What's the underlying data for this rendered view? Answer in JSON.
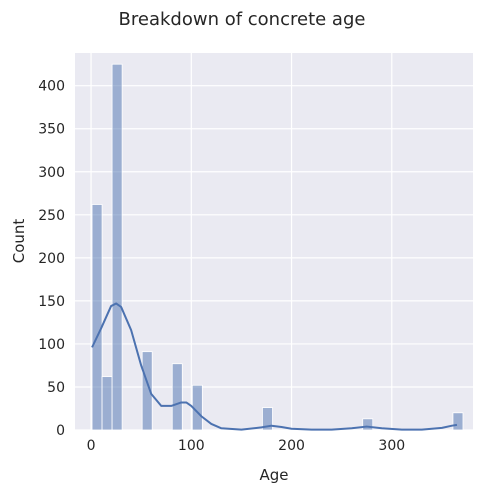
{
  "chart_data": {
    "type": "bar",
    "title": "Breakdown of concrete age",
    "xlabel": "Age",
    "ylabel": "Count",
    "xlim": [
      -16,
      381
    ],
    "ylim": [
      0,
      438
    ],
    "x_ticks": [
      0,
      100,
      200,
      300
    ],
    "y_ticks": [
      0,
      50,
      100,
      150,
      200,
      250,
      300,
      350,
      400
    ],
    "grid": true,
    "bin_width": 10,
    "bins": [
      {
        "start": 1,
        "end": 11,
        "count": 262
      },
      {
        "start": 11,
        "end": 21,
        "count": 62
      },
      {
        "start": 21,
        "end": 31,
        "count": 425
      },
      {
        "start": 31,
        "end": 41,
        "count": 0
      },
      {
        "start": 41,
        "end": 51,
        "count": 0
      },
      {
        "start": 51,
        "end": 61,
        "count": 91
      },
      {
        "start": 61,
        "end": 71,
        "count": 0
      },
      {
        "start": 71,
        "end": 81,
        "count": 0
      },
      {
        "start": 81,
        "end": 91,
        "count": 77
      },
      {
        "start": 91,
        "end": 101,
        "count": 0
      },
      {
        "start": 101,
        "end": 111,
        "count": 52
      },
      {
        "start": 171,
        "end": 181,
        "count": 26
      },
      {
        "start": 261,
        "end": 271,
        "count": 0
      },
      {
        "start": 271,
        "end": 281,
        "count": 13
      },
      {
        "start": 361,
        "end": 371,
        "count": 20
      }
    ],
    "kde": {
      "x": [
        1,
        10,
        20,
        25,
        30,
        40,
        50,
        60,
        70,
        80,
        90,
        95,
        100,
        110,
        120,
        130,
        150,
        170,
        180,
        190,
        200,
        220,
        240,
        260,
        275,
        290,
        310,
        330,
        350,
        360,
        365
      ],
      "y": [
        96,
        118,
        144,
        147,
        143,
        116,
        75,
        42,
        28,
        28,
        32,
        32,
        28,
        16,
        7,
        2,
        0.5,
        3,
        5,
        3.5,
        1.5,
        0.5,
        0.5,
        2,
        4,
        2,
        0.5,
        0.5,
        2.5,
        5,
        6
      ]
    },
    "colors": {
      "bar": "#4c72b0",
      "line": "#4c72b0",
      "background": "#eaeaf2",
      "grid": "#ffffff"
    }
  }
}
